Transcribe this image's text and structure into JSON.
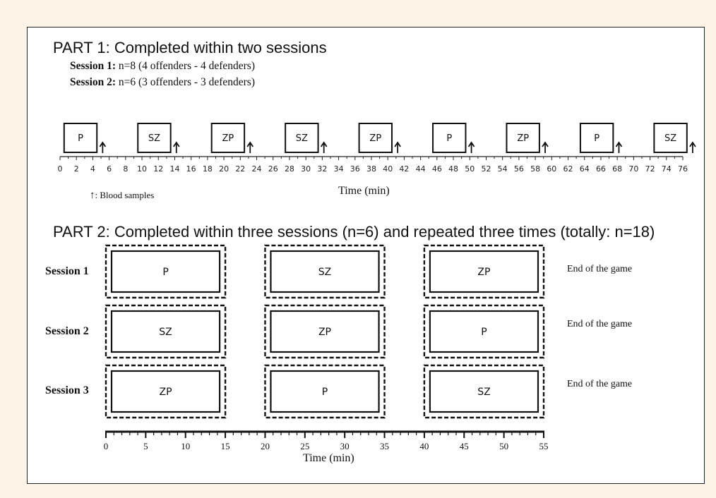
{
  "part1": {
    "title": "PART 1: Completed within two sessions",
    "sessions": [
      {
        "label": "Session 1:",
        "text": "n=8 (4 offenders - 4 defenders)"
      },
      {
        "label": "Session 2:",
        "text": "n=6 (3 offenders - 3 defenders)"
      }
    ],
    "blocks": [
      {
        "label": "P",
        "start": 0.5,
        "end": 4.5
      },
      {
        "label": "SZ",
        "start": 9.5,
        "end": 13.5
      },
      {
        "label": "ZP",
        "start": 18.5,
        "end": 22.5
      },
      {
        "label": "SZ",
        "start": 27.5,
        "end": 31.5
      },
      {
        "label": "ZP",
        "start": 36.5,
        "end": 40.5
      },
      {
        "label": "P",
        "start": 45.5,
        "end": 49.5
      },
      {
        "label": "ZP",
        "start": 54.5,
        "end": 58.5
      },
      {
        "label": "P",
        "start": 63.5,
        "end": 67.5
      },
      {
        "label": "SZ",
        "start": 72.5,
        "end": 76.5
      }
    ],
    "blood_samples_min": [
      5.2,
      14.2,
      23.2,
      32.2,
      41.2,
      50.2,
      59.2,
      68.2,
      77.2
    ],
    "axis_ticks": [
      "0",
      "2",
      "4",
      "6",
      "8",
      "10",
      "12",
      "14",
      "16",
      "18",
      "20",
      "22",
      "24",
      "26",
      "28",
      "30",
      "32",
      "34",
      "36",
      "38",
      "40",
      "42",
      "44",
      "46",
      "48",
      "50",
      "52",
      "54",
      "56",
      "58",
      "60",
      "62",
      "64",
      "66",
      "68",
      "70",
      "72",
      "74",
      "76"
    ],
    "axis_range": [
      0,
      76
    ],
    "axis_label": "Time (min)",
    "blood_legend_symbol": "↑",
    "blood_legend_text": ": Blood samples"
  },
  "part2": {
    "title": "PART 2: Completed within three sessions (n=6) and repeated three times (totally: n=18)",
    "rows": [
      {
        "label": "Session 1",
        "blocks": [
          "P",
          "SZ",
          "ZP"
        ],
        "end": "End of the game"
      },
      {
        "label": "Session 2",
        "blocks": [
          "SZ",
          "ZP",
          "P"
        ],
        "end": "End of the game"
      },
      {
        "label": "Session 3",
        "blocks": [
          "ZP",
          "P",
          "SZ"
        ],
        "end": "End of the game"
      }
    ],
    "block_spans_min": [
      [
        0,
        15
      ],
      [
        20,
        35
      ],
      [
        40,
        55
      ]
    ],
    "axis_ticks": [
      "0",
      "5",
      "10",
      "15",
      "20",
      "25",
      "30",
      "35",
      "40",
      "45",
      "50",
      "55"
    ],
    "axis_range": [
      0,
      55
    ],
    "axis_label": "Time (min)"
  }
}
